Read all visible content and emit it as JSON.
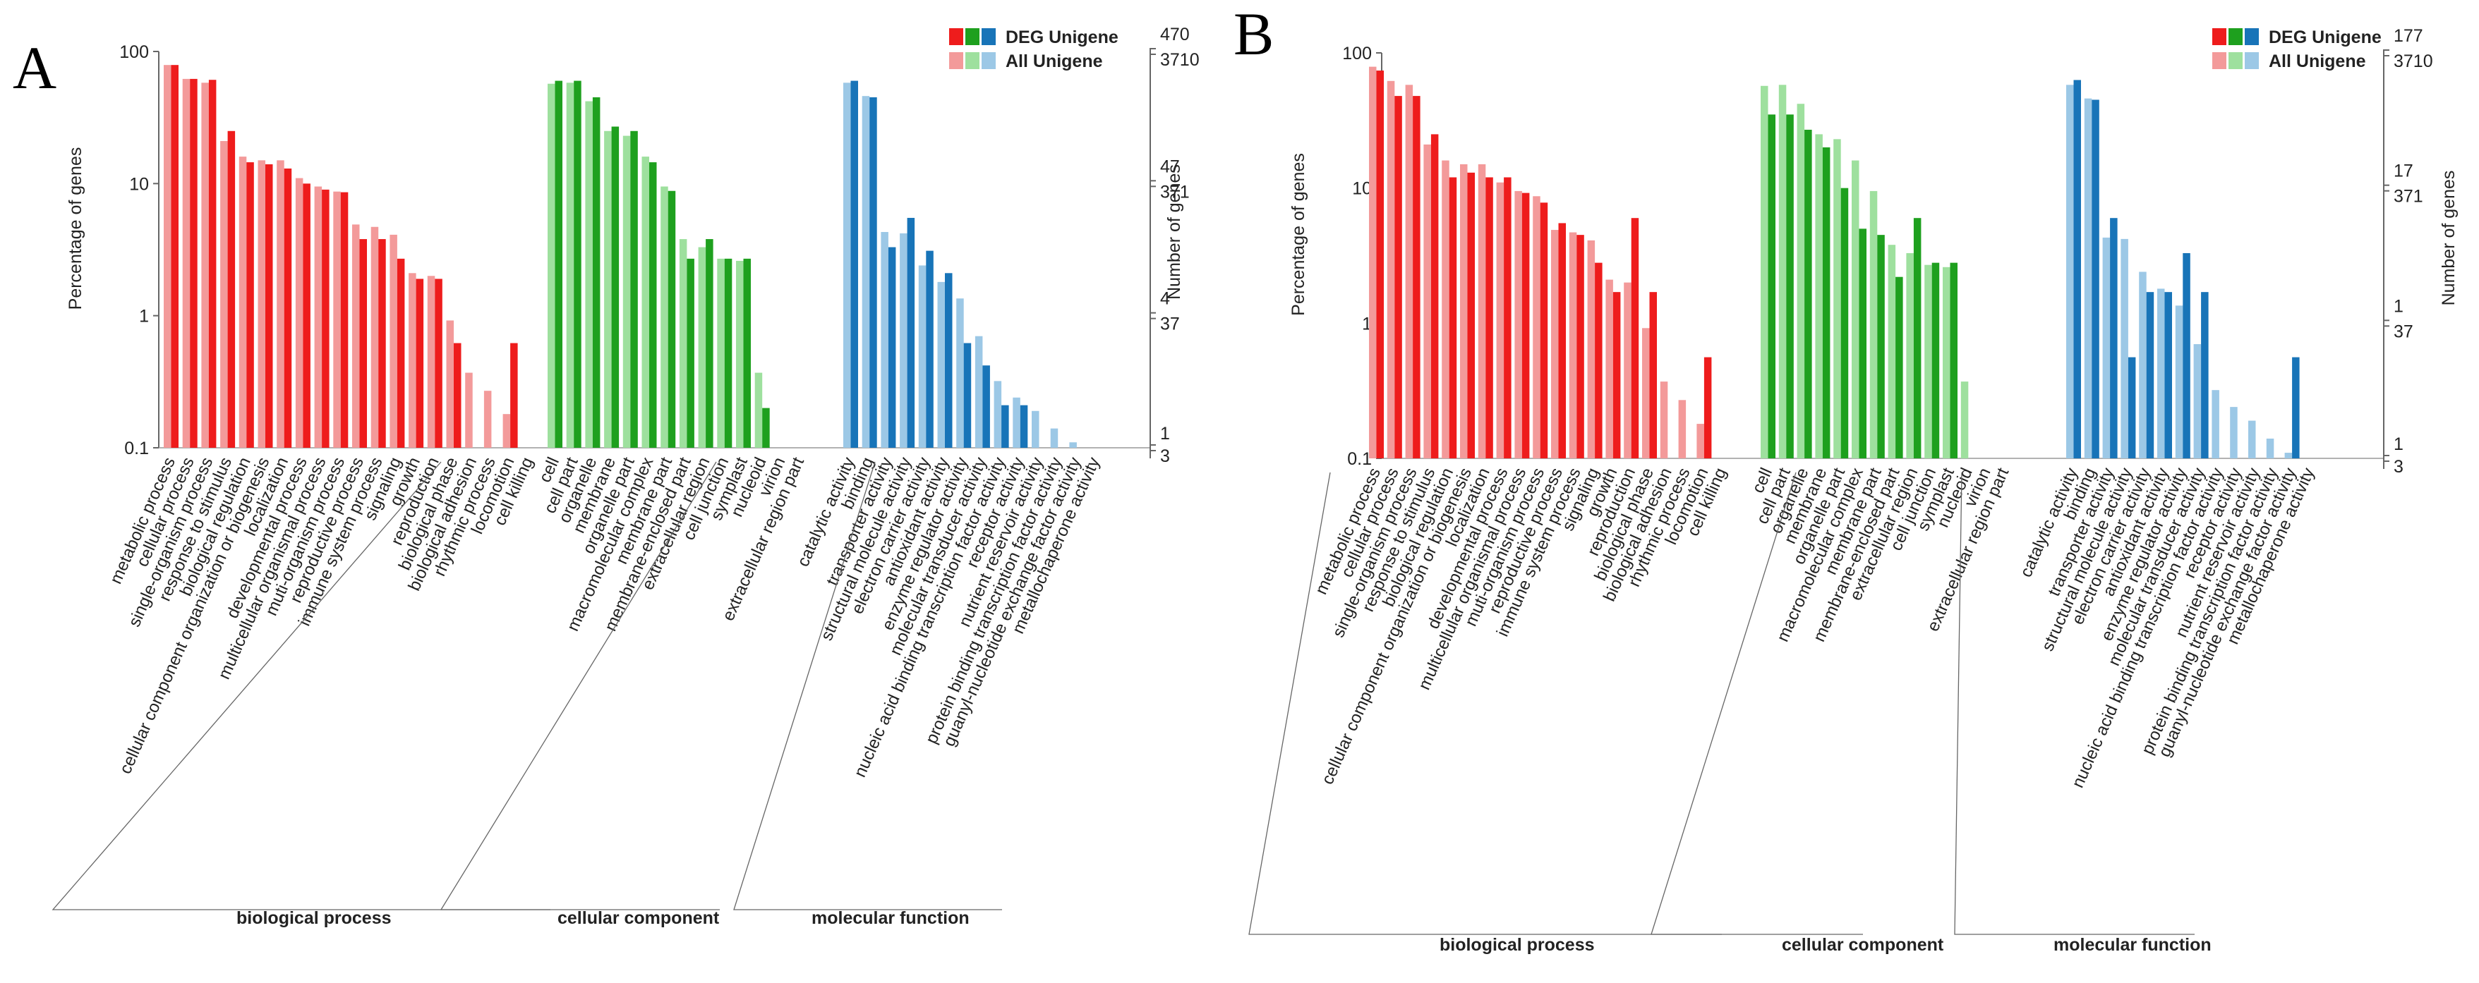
{
  "chart_data": [
    {
      "type": "bar",
      "panel": "A",
      "title": "",
      "ylabel": "Percentage of genes",
      "y2label": "Number of genes",
      "yscale": "log",
      "ylim": [
        0.1,
        100
      ],
      "yticks": [
        "100",
        "10",
        "1",
        "0.1"
      ],
      "y2ticks_deg": [
        "470",
        "47",
        "4",
        "1"
      ],
      "y2ticks_all": [
        "3710",
        "371",
        "37",
        "3"
      ],
      "legend": {
        "position": "top-right",
        "entries": [
          "DEG Unigene",
          "All Unigene"
        ]
      },
      "groups": [
        {
          "name": "biological process",
          "color_deg": "#ee1c1c",
          "color_all": "#f39a9a",
          "categories": [
            "metabolic process",
            "cellular process",
            "single-organism process",
            "response to stimulus",
            "biological regulation",
            "cellular component organization or biogenesis",
            "localization",
            "developmental process",
            "multicellular organismal process",
            "muti-organism process",
            "reproductive process",
            "immune system process",
            "signaling",
            "growth",
            "reproduction",
            "biological phase",
            "biological adhesion",
            "rhythmic process",
            "locomotion",
            "cell killing"
          ],
          "all": [
            79,
            62,
            58,
            21,
            16,
            15,
            15,
            11,
            9.5,
            8.7,
            4.9,
            4.7,
            4.1,
            2.1,
            2.0,
            0.92,
            0.37,
            0.27,
            0.18,
            null
          ],
          "deg": [
            79,
            62,
            61,
            25,
            14.5,
            14,
            13,
            10,
            9,
            8.6,
            3.8,
            3.8,
            2.7,
            1.9,
            1.9,
            0.62,
            null,
            null,
            0.62,
            null
          ]
        },
        {
          "name": "cellular component",
          "color_deg": "#1ea01e",
          "color_all": "#9ee09e",
          "categories": [
            "cell",
            "cell part",
            "organelle",
            "membrane",
            "organelle part",
            "macromolecular complex",
            "membrane part",
            "membrane-enclosed part",
            "extracellular region",
            "cell junction",
            "symplast",
            "nucleoid",
            "virion",
            "extracellular region part"
          ],
          "all": [
            57,
            58,
            42,
            25,
            23,
            16,
            9.5,
            3.8,
            3.3,
            2.7,
            2.6,
            0.37,
            null,
            null
          ],
          "deg": [
            60,
            60,
            45,
            27,
            25,
            14.5,
            8.8,
            2.7,
            3.8,
            2.7,
            2.7,
            0.2,
            null,
            null
          ]
        },
        {
          "name": "molecular function",
          "color_deg": "#1874b8",
          "color_all": "#9cc8e6",
          "categories": [
            "catalytic activity",
            "binding",
            "transporter activity",
            "structural molecule activity",
            "electron carrier activity",
            "antioxidant activity",
            "enzyme regulator activity",
            "molecular transducer activity",
            "nucleic acid binding transcription factor activity",
            "receptor activity",
            "nutrient reservoir activity",
            "protein binding transcription factor activity",
            "guanyl-nucleotide exchange factor activity",
            "metallochaperone activity"
          ],
          "all": [
            58,
            46,
            4.3,
            4.2,
            2.4,
            1.8,
            1.35,
            0.7,
            0.32,
            0.24,
            0.19,
            0.14,
            0.11,
            null
          ],
          "deg": [
            60,
            45,
            3.3,
            5.5,
            3.1,
            2.1,
            0.62,
            0.42,
            0.21,
            0.21,
            null,
            null,
            null,
            null
          ]
        }
      ]
    },
    {
      "type": "bar",
      "panel": "B",
      "title": "",
      "ylabel": "Percentage of genes",
      "y2label": "Number of genes",
      "yscale": "log",
      "ylim": [
        0.1,
        100
      ],
      "yticks": [
        "100",
        "10",
        "1",
        "0.1"
      ],
      "y2ticks_deg": [
        "177",
        "17",
        "1",
        "1"
      ],
      "y2ticks_all": [
        "3710",
        "371",
        "37",
        "3"
      ],
      "legend": {
        "position": "top-right",
        "entries": [
          "DEG Unigene",
          "All Unigene"
        ]
      },
      "groups": [
        {
          "name": "biological process",
          "color_deg": "#ee1c1c",
          "color_all": "#f39a9a",
          "categories": [
            "metabolic process",
            "cellular process",
            "single-organism process",
            "response to stimulus",
            "biological regulation",
            "cellular component organization or biogenesis",
            "localization",
            "developmental process",
            "multicellular organismal process",
            "muti-organism process",
            "reproductive process",
            "immune system process",
            "signaling",
            "growth",
            "reproduction",
            "biological phase",
            "biological adhesion",
            "rhythmic process",
            "locomotion",
            "cell killing"
          ],
          "all": [
            79,
            62,
            58,
            21,
            16,
            15,
            15,
            11,
            9.5,
            8.7,
            4.9,
            4.7,
            4.1,
            2.1,
            2.0,
            0.92,
            0.37,
            0.27,
            0.18,
            null
          ],
          "deg": [
            74,
            48,
            48,
            25,
            12,
            13,
            12,
            12,
            9.2,
            7.8,
            5.5,
            4.5,
            2.8,
            1.7,
            6,
            1.7,
            null,
            null,
            0.56,
            null
          ]
        },
        {
          "name": "cellular component",
          "color_deg": "#1ea01e",
          "color_all": "#9ee09e",
          "categories": [
            "cell",
            "cell part",
            "organelle",
            "membrane",
            "organelle part",
            "macromolecular complex",
            "membrane part",
            "membrane-enclosed part",
            "extracellular region",
            "cell junction",
            "symplast",
            "nucleoid",
            "virion",
            "extracellular region part"
          ],
          "all": [
            57,
            58,
            42,
            25,
            23,
            16,
            9.5,
            3.8,
            3.3,
            2.7,
            2.6,
            0.37,
            null,
            null
          ],
          "deg": [
            35,
            35,
            27,
            20,
            10,
            5,
            4.5,
            2.2,
            6,
            2.8,
            2.8,
            null,
            null,
            null
          ]
        },
        {
          "name": "molecular function",
          "color_deg": "#1874b8",
          "color_all": "#9cc8e6",
          "categories": [
            "catalytic activity",
            "binding",
            "transporter activity",
            "structural molecule activity",
            "electron carrier activity",
            "antioxidant activity",
            "enzyme regulator activity",
            "molecular transducer activity",
            "nucleic acid binding transcription factor activity",
            "receptor activity",
            "nutrient reservoir activity",
            "protein binding transcription factor activity",
            "guanyl-nucleotide exchange factor activity",
            "metallochaperone activity"
          ],
          "all": [
            58,
            46,
            4.3,
            4.2,
            2.4,
            1.8,
            1.35,
            0.7,
            0.32,
            0.24,
            0.19,
            0.14,
            0.11,
            null
          ],
          "deg": [
            63,
            45,
            6,
            0.56,
            1.7,
            1.7,
            3.3,
            1.7,
            null,
            null,
            null,
            null,
            0.56,
            null
          ]
        }
      ]
    }
  ]
}
